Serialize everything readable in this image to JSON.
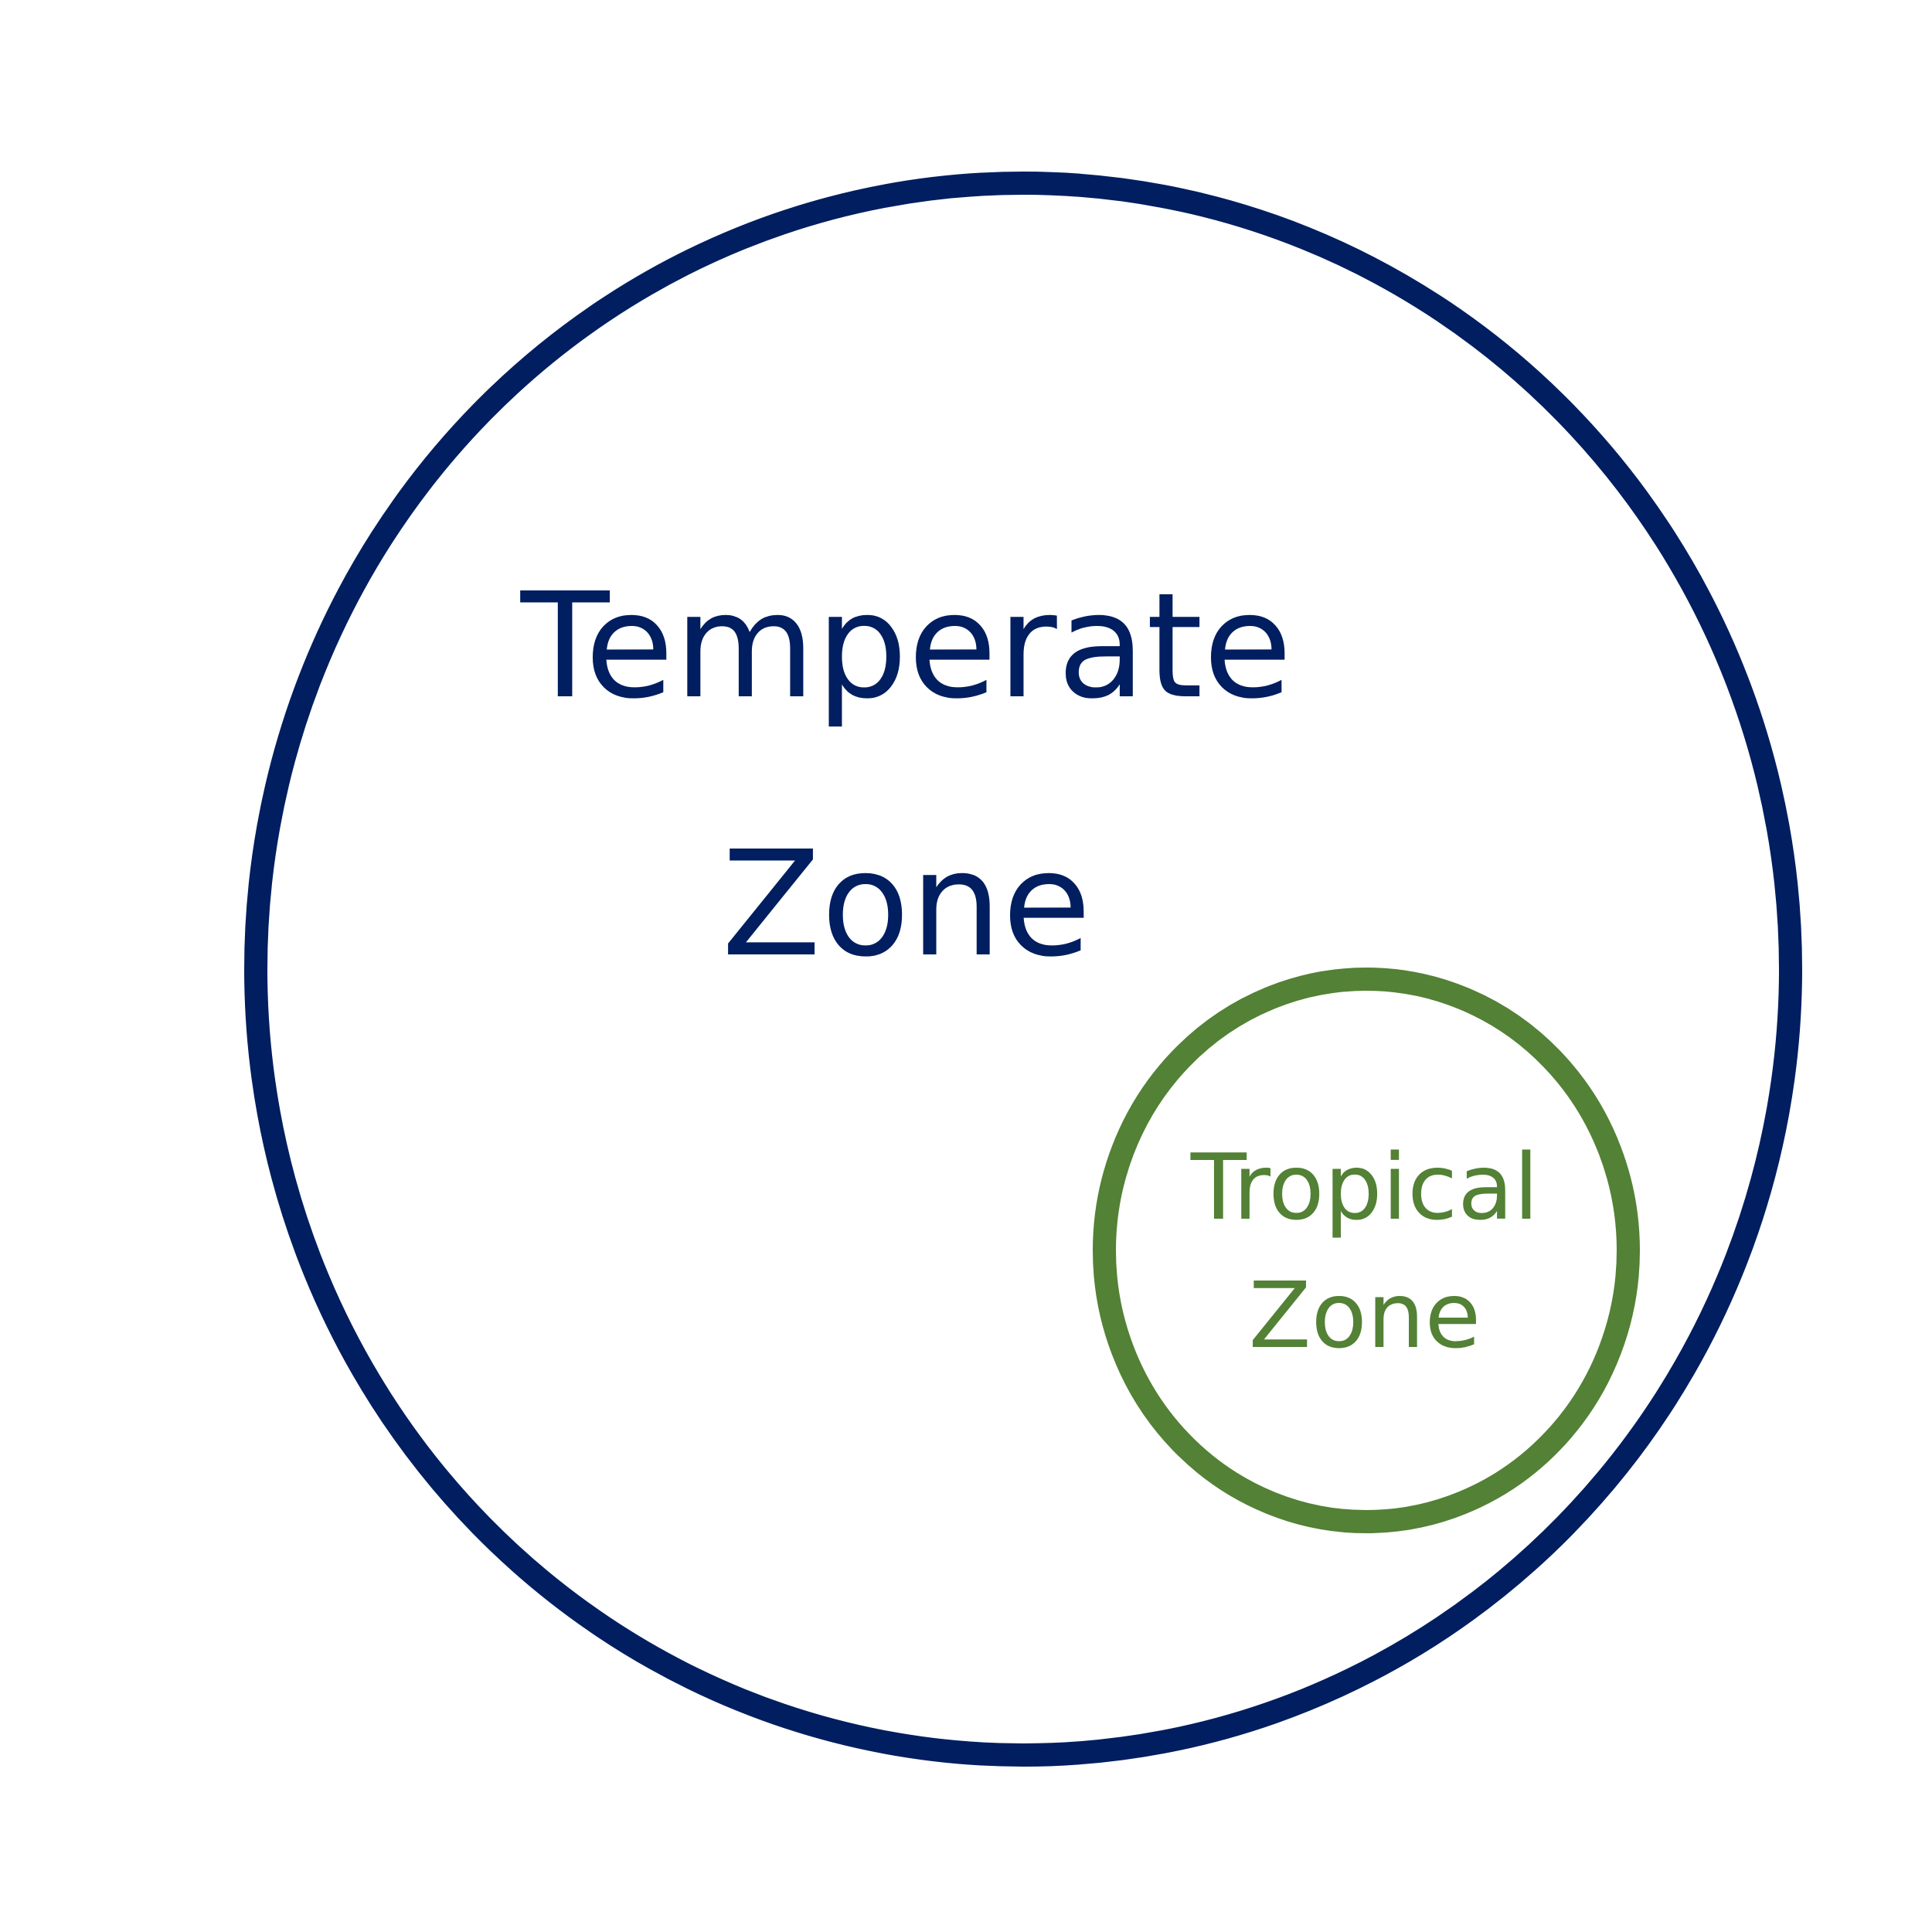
{
  "diagram": {
    "outer_set": {
      "label_line1": "Temperate",
      "label_line2": "Zone",
      "color": "#001E60"
    },
    "inner_set": {
      "label_line1": "Tropical",
      "label_line2": "Zone",
      "color": "#538135"
    },
    "background": "#FFFFFF"
  }
}
